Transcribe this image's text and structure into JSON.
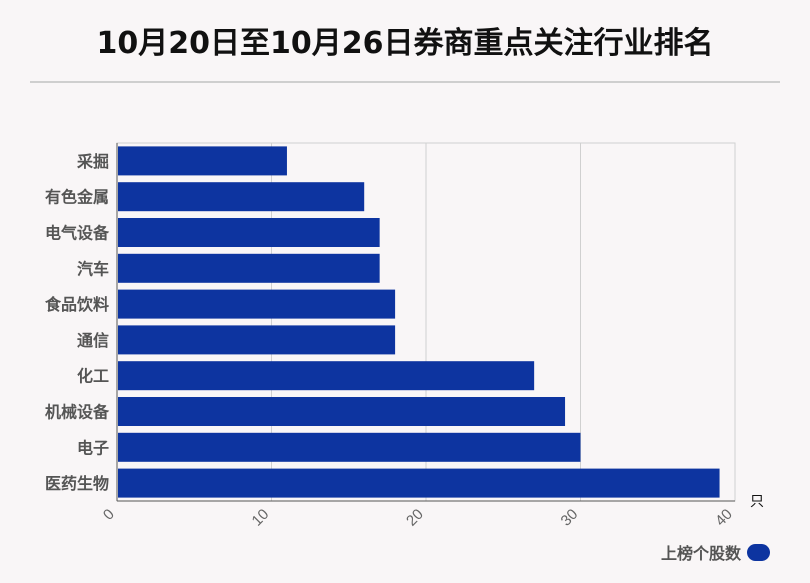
{
  "title": "10月20日至10月26日券商重点关注行业排名",
  "colors": {
    "bar": "#0d34a0",
    "grid": "#d0d0d0",
    "background": "#f9f6f7"
  },
  "chart_data": {
    "type": "bar",
    "orientation": "horizontal",
    "categories": [
      "采掘",
      "有色金属",
      "电气设备",
      "汽车",
      "食品饮料",
      "通信",
      "化工",
      "机械设备",
      "电子",
      "医药生物"
    ],
    "series": [
      {
        "name": "上榜个股数",
        "values": [
          11,
          16,
          17,
          17,
          18,
          18,
          27,
          29,
          30,
          39
        ]
      }
    ],
    "xlim": [
      0,
      40
    ],
    "xticks": [
      "0",
      "10",
      "20",
      "30",
      "40"
    ],
    "xunit": "只",
    "grid": true,
    "legend_position": "bottom-right"
  }
}
